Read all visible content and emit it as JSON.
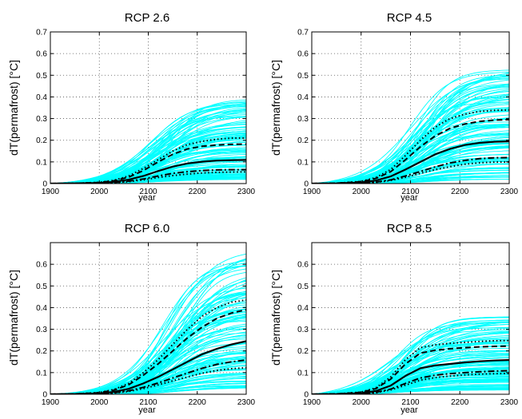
{
  "chart_data": [
    {
      "type": "line",
      "title": "RCP 2.6",
      "xlabel": "year",
      "ylabel": "dT(permafrost) [°C]",
      "xlim": [
        1900,
        2300
      ],
      "ylim": [
        0,
        0.7
      ],
      "xticks": [
        "1900",
        "2000",
        "2100",
        "2200",
        "2300"
      ],
      "yticks": [
        "0",
        "0.1",
        "0.2",
        "0.3",
        "0.4",
        "0.5",
        "0.6",
        "0.7"
      ],
      "grid": true,
      "ensemble": {
        "count": 120,
        "min_final": 0.02,
        "max_final": 0.39,
        "midpoint_year": 2125,
        "color": "#00ffff"
      },
      "x": [
        1900,
        1950,
        2000,
        2030,
        2060,
        2090,
        2120,
        2150,
        2180,
        2210,
        2240,
        2270,
        2300
      ],
      "series": [
        {
          "style": "dotted",
          "values": [
            0,
            0.001,
            0.006,
            0.015,
            0.035,
            0.07,
            0.11,
            0.15,
            0.18,
            0.195,
            0.205,
            0.21,
            0.21
          ]
        },
        {
          "style": "dashed",
          "values": [
            0,
            0.001,
            0.005,
            0.013,
            0.03,
            0.06,
            0.1,
            0.135,
            0.16,
            0.172,
            0.178,
            0.181,
            0.182
          ]
        },
        {
          "style": "solid",
          "values": [
            0,
            0.001,
            0.003,
            0.008,
            0.018,
            0.035,
            0.058,
            0.078,
            0.093,
            0.101,
            0.106,
            0.108,
            0.109
          ]
        },
        {
          "style": "dashdot",
          "values": [
            0,
            0.0005,
            0.002,
            0.005,
            0.011,
            0.021,
            0.035,
            0.047,
            0.055,
            0.06,
            0.063,
            0.064,
            0.064
          ]
        },
        {
          "style": "dotted",
          "values": [
            0,
            0.0005,
            0.0015,
            0.004,
            0.009,
            0.017,
            0.028,
            0.037,
            0.044,
            0.049,
            0.052,
            0.053,
            0.054
          ]
        }
      ]
    },
    {
      "type": "line",
      "title": "RCP 4.5",
      "xlabel": "year",
      "ylabel": "dT(permafrost) [°C]",
      "xlim": [
        1900,
        2300
      ],
      "ylim": [
        0,
        0.7
      ],
      "xticks": [
        "1900",
        "2000",
        "2100",
        "2200",
        "2300"
      ],
      "yticks": [
        "0",
        "0.1",
        "0.2",
        "0.3",
        "0.4",
        "0.5",
        "0.6",
        "0.7"
      ],
      "grid": true,
      "ensemble": {
        "count": 120,
        "min_final": 0.02,
        "max_final": 0.54,
        "midpoint_year": 2120,
        "color": "#00ffff"
      },
      "x": [
        1900,
        1950,
        2000,
        2030,
        2060,
        2090,
        2120,
        2150,
        2180,
        2210,
        2240,
        2270,
        2300
      ],
      "series": [
        {
          "style": "dotted",
          "values": [
            0,
            0.002,
            0.01,
            0.028,
            0.065,
            0.13,
            0.2,
            0.26,
            0.3,
            0.32,
            0.333,
            0.338,
            0.34
          ]
        },
        {
          "style": "dashed",
          "values": [
            0,
            0.002,
            0.008,
            0.024,
            0.055,
            0.11,
            0.17,
            0.22,
            0.255,
            0.275,
            0.287,
            0.293,
            0.295
          ]
        },
        {
          "style": "solid",
          "values": [
            0,
            0.001,
            0.005,
            0.014,
            0.033,
            0.065,
            0.1,
            0.135,
            0.16,
            0.178,
            0.188,
            0.193,
            0.195
          ]
        },
        {
          "style": "dashdot",
          "values": [
            0,
            0.0005,
            0.003,
            0.007,
            0.017,
            0.035,
            0.056,
            0.077,
            0.095,
            0.107,
            0.115,
            0.119,
            0.12
          ]
        },
        {
          "style": "dotted",
          "values": [
            0,
            0.0005,
            0.002,
            0.006,
            0.014,
            0.029,
            0.047,
            0.064,
            0.078,
            0.089,
            0.096,
            0.099,
            0.1
          ]
        }
      ]
    },
    {
      "type": "line",
      "title": "RCP 6.0",
      "xlabel": "year",
      "ylabel": "dT(permafrost) [°C]",
      "xlim": [
        1900,
        2300
      ],
      "ylim": [
        0,
        0.7
      ],
      "xticks": [
        "1900",
        "2000",
        "2100",
        "2200",
        "2300"
      ],
      "yticks": [
        "0",
        "0.1",
        "0.2",
        "0.3",
        "0.4",
        "0.5",
        "0.6"
      ],
      "grid": true,
      "ensemble": {
        "count": 120,
        "min_final": 0.03,
        "max_final": 0.67,
        "midpoint_year": 2150,
        "color": "#00ffff"
      },
      "x": [
        1900,
        1950,
        2000,
        2030,
        2060,
        2090,
        2120,
        2150,
        2180,
        2210,
        2240,
        2270,
        2300
      ],
      "series": [
        {
          "style": "dotted",
          "values": [
            0,
            0.002,
            0.008,
            0.022,
            0.05,
            0.1,
            0.16,
            0.23,
            0.3,
            0.36,
            0.4,
            0.425,
            0.435
          ]
        },
        {
          "style": "dashed",
          "values": [
            0,
            0.002,
            0.007,
            0.019,
            0.044,
            0.088,
            0.14,
            0.2,
            0.26,
            0.31,
            0.35,
            0.375,
            0.39
          ]
        },
        {
          "style": "solid",
          "values": [
            0,
            0.001,
            0.004,
            0.011,
            0.025,
            0.05,
            0.08,
            0.115,
            0.15,
            0.185,
            0.21,
            0.23,
            0.245
          ]
        },
        {
          "style": "dashdot",
          "values": [
            0,
            0.0005,
            0.003,
            0.007,
            0.016,
            0.032,
            0.052,
            0.075,
            0.098,
            0.12,
            0.138,
            0.15,
            0.158
          ]
        },
        {
          "style": "dotted",
          "values": [
            0,
            0.0005,
            0.002,
            0.006,
            0.013,
            0.026,
            0.043,
            0.062,
            0.08,
            0.097,
            0.11,
            0.118,
            0.122
          ]
        }
      ]
    },
    {
      "type": "line",
      "title": "RCP 8.5",
      "xlabel": "year",
      "ylabel": "dT(permafrost) [°C]",
      "xlim": [
        1900,
        2300
      ],
      "ylim": [
        0,
        0.7
      ],
      "xticks": [
        "1900",
        "2000",
        "2100",
        "2200",
        "2300"
      ],
      "yticks": [
        "0",
        "0.1",
        "0.2",
        "0.3",
        "0.4",
        "0.5",
        "0.6"
      ],
      "grid": true,
      "ensemble": {
        "count": 120,
        "min_final": 0.02,
        "max_final": 0.36,
        "midpoint_year": 2085,
        "color": "#00ffff"
      },
      "x": [
        1900,
        1950,
        2000,
        2030,
        2060,
        2090,
        2120,
        2150,
        2180,
        2210,
        2240,
        2270,
        2300
      ],
      "series": [
        {
          "style": "dotted",
          "values": [
            0,
            0.002,
            0.01,
            0.03,
            0.08,
            0.16,
            0.215,
            0.228,
            0.235,
            0.24,
            0.244,
            0.247,
            0.248
          ]
        },
        {
          "style": "dashed",
          "values": [
            0,
            0.002,
            0.009,
            0.026,
            0.07,
            0.14,
            0.19,
            0.203,
            0.21,
            0.215,
            0.219,
            0.221,
            0.222
          ]
        },
        {
          "style": "solid",
          "values": [
            0,
            0.001,
            0.005,
            0.015,
            0.04,
            0.085,
            0.12,
            0.133,
            0.14,
            0.147,
            0.152,
            0.156,
            0.158
          ]
        },
        {
          "style": "dashdot",
          "values": [
            0,
            0.0005,
            0.003,
            0.009,
            0.024,
            0.05,
            0.075,
            0.088,
            0.095,
            0.1,
            0.104,
            0.107,
            0.109
          ]
        },
        {
          "style": "dotted",
          "values": [
            0,
            0.0005,
            0.002,
            0.007,
            0.02,
            0.042,
            0.065,
            0.077,
            0.084,
            0.089,
            0.093,
            0.095,
            0.096
          ]
        }
      ]
    }
  ]
}
